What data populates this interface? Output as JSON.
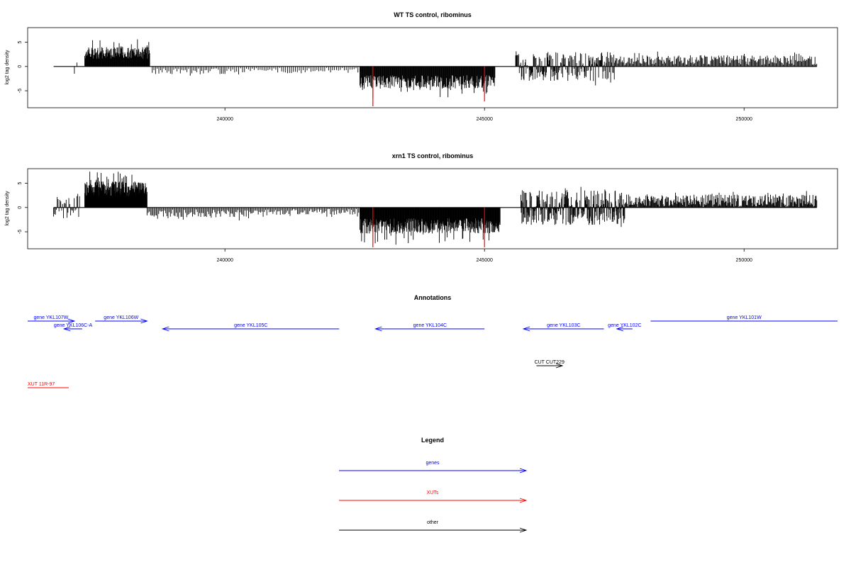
{
  "chart_data": [
    {
      "type": "bar",
      "title": "WT TS control, ribominus",
      "ylabel": "log2 tag density",
      "xlabel": "",
      "xlim": [
        236200,
        251800
      ],
      "ylim": [
        -8.5,
        8
      ],
      "xticks": [
        240000,
        245000,
        250000
      ],
      "xtick_labels": [
        "240000",
        "245000",
        "250000"
      ],
      "yticks": [
        -5,
        0,
        5
      ],
      "ytick_labels": [
        "-5",
        "0",
        "5"
      ],
      "baseline_range": [
        236700,
        251400
      ],
      "highlight_positions": [
        242850,
        245000
      ],
      "highlight_values": [
        -8.2,
        -7.2
      ],
      "highlight_color": "#ff0000",
      "bar_color": "#000000",
      "grid": false,
      "segments": [
        {
          "start": 237100,
          "end": 237150,
          "values": [
            -1.5,
            0.8
          ],
          "seed": 11
        },
        {
          "start": 237300,
          "end": 238550,
          "values": [
            2.8
          ],
          "seed": 12,
          "sign": 1,
          "count": 150,
          "jitter": 1.2
        },
        {
          "start": 238600,
          "end": 240000,
          "values": [
            -1.0
          ],
          "seed": 13,
          "sign": -1,
          "count": 45,
          "jitter": 0.6
        },
        {
          "start": 240000,
          "end": 242600,
          "values": [
            -0.8
          ],
          "seed": 14,
          "sign": -1,
          "count": 70,
          "jitter": 0.6
        },
        {
          "start": 242600,
          "end": 245200,
          "values": [
            -3.2
          ],
          "seed": 15,
          "sign": -1,
          "count": 260,
          "jitter": 1.4
        },
        {
          "start": 245600,
          "end": 247500,
          "values": [
            -1.5
          ],
          "seed": 16,
          "sign": 0,
          "count": 190,
          "jitter": 1.5
        },
        {
          "start": 247500,
          "end": 251400,
          "values": [
            1.3
          ],
          "seed": 17,
          "sign": 1,
          "count": 230,
          "jitter": 1.0
        }
      ]
    },
    {
      "type": "bar",
      "title": "xrn1 TS control, ribominus",
      "ylabel": "log2 tag density",
      "xlabel": "",
      "xlim": [
        236200,
        251800
      ],
      "ylim": [
        -8.5,
        8
      ],
      "xticks": [
        240000,
        245000,
        250000
      ],
      "xtick_labels": [
        "240000",
        "245000",
        "250000"
      ],
      "yticks": [
        -5,
        0,
        5
      ],
      "ytick_labels": [
        "-5",
        "0",
        "5"
      ],
      "baseline_range": [
        236700,
        251400
      ],
      "highlight_positions": [
        242850,
        245000
      ],
      "highlight_values": [
        -8.2,
        -8.2
      ],
      "highlight_color": "#ff0000",
      "bar_color": "#000000",
      "grid": false,
      "segments": [
        {
          "start": 236700,
          "end": 237200,
          "values": [
            -1.2
          ],
          "seed": 21,
          "sign": 0,
          "count": 30,
          "jitter": 1.3
        },
        {
          "start": 237300,
          "end": 238500,
          "values": [
            3.8
          ],
          "seed": 22,
          "sign": 1,
          "count": 260,
          "jitter": 1.6
        },
        {
          "start": 238500,
          "end": 240500,
          "values": [
            -1.2
          ],
          "seed": 23,
          "sign": -1,
          "count": 90,
          "jitter": 0.8
        },
        {
          "start": 240500,
          "end": 242600,
          "values": [
            -0.9
          ],
          "seed": 24,
          "sign": -1,
          "count": 90,
          "jitter": 0.6
        },
        {
          "start": 242600,
          "end": 245300,
          "values": [
            -3.8
          ],
          "seed": 25,
          "sign": -1,
          "count": 340,
          "jitter": 1.6
        },
        {
          "start": 245700,
          "end": 247700,
          "values": [
            -1.6
          ],
          "seed": 26,
          "sign": 0,
          "count": 300,
          "jitter": 2.0
        },
        {
          "start": 247700,
          "end": 251400,
          "values": [
            1.4
          ],
          "seed": 27,
          "sign": 1,
          "count": 300,
          "jitter": 1.3
        }
      ]
    }
  ],
  "annotations": {
    "title": "Annotations",
    "genes": [
      {
        "label": "gene YKL107W",
        "start": 236200,
        "end": 237100,
        "dir": "right",
        "row": 0,
        "color": "#0000ff"
      },
      {
        "label": "gene YKL106C-A",
        "start": 236900,
        "end": 237250,
        "dir": "left",
        "row": 1,
        "color": "#0000ff"
      },
      {
        "label": "gene YKL106W",
        "start": 237500,
        "end": 238500,
        "dir": "right",
        "row": 0,
        "color": "#0000ff"
      },
      {
        "label": "gene YKL105C",
        "start": 238800,
        "end": 242200,
        "dir": "left",
        "row": 1,
        "color": "#0000ff"
      },
      {
        "label": "gene YKL104C",
        "start": 242900,
        "end": 245000,
        "dir": "left",
        "row": 1,
        "color": "#0000ff"
      },
      {
        "label": "gene YKL103C",
        "start": 245750,
        "end": 247300,
        "dir": "left",
        "row": 1,
        "color": "#0000ff"
      },
      {
        "label": "gene YKL102C",
        "start": 247550,
        "end": 247850,
        "dir": "left",
        "row": 1,
        "color": "#0000ff"
      },
      {
        "label": "gene YKL101W",
        "start": 248200,
        "end": 251800,
        "dir": "none",
        "row": 0,
        "color": "#0000ff"
      }
    ],
    "cuts": [
      {
        "label": "CUT CUT229",
        "start": 246000,
        "end": 246500,
        "dir": "right",
        "color": "#000000"
      }
    ],
    "xuts": [
      {
        "label": "XUT 11R-97",
        "start": 236200,
        "end": 237000,
        "dir": "none",
        "color": "#ff0000"
      }
    ]
  },
  "legend": {
    "title": "Legend",
    "items": [
      {
        "label": "genes",
        "color": "#0000ff"
      },
      {
        "label": "XUTs",
        "color": "#ff0000"
      },
      {
        "label": "other",
        "color": "#000000"
      }
    ]
  }
}
